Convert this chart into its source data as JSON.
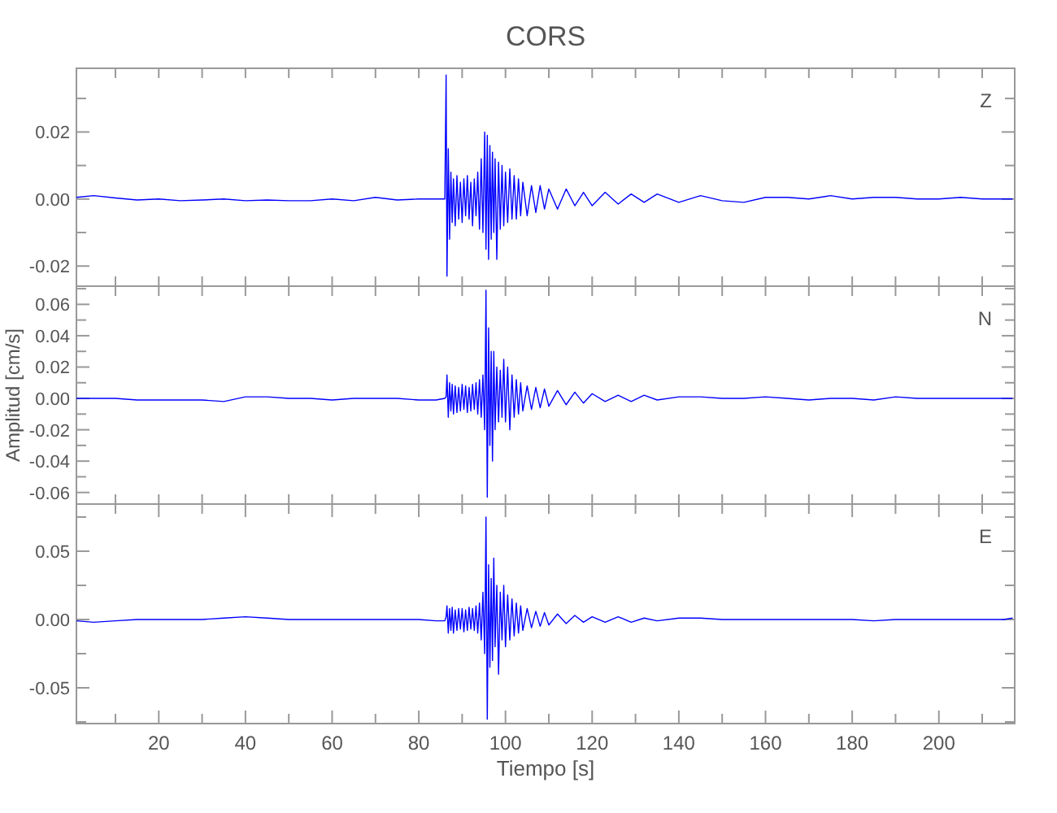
{
  "chart_data": [
    {
      "type": "line",
      "title": "CORS",
      "annotations": [
        "Z"
      ],
      "tick_labels": "y",
      "xlim": [
        1,
        217.5
      ],
      "ylim": [
        -0.026,
        0.039
      ],
      "xticks": [
        {
          "value": 10,
          "label": null
        },
        {
          "value": 20,
          "label": null
        },
        {
          "value": 30,
          "label": null
        },
        {
          "value": 40,
          "label": null
        },
        {
          "value": 50,
          "label": null
        },
        {
          "value": 60,
          "label": null
        },
        {
          "value": 70,
          "label": null
        },
        {
          "value": 80,
          "label": null
        },
        {
          "value": 90,
          "label": null
        },
        {
          "value": 100,
          "label": null
        },
        {
          "value": 110,
          "label": null
        },
        {
          "value": 120,
          "label": null
        },
        {
          "value": 130,
          "label": null
        },
        {
          "value": 140,
          "label": null
        },
        {
          "value": 150,
          "label": null
        },
        {
          "value": 160,
          "label": null
        },
        {
          "value": 170,
          "label": null
        },
        {
          "value": 180,
          "label": null
        },
        {
          "value": 190,
          "label": null
        },
        {
          "value": 200,
          "label": null
        },
        {
          "value": 210,
          "label": null
        }
      ],
      "yticks": [
        {
          "value": -0.02,
          "label": "-0.02"
        },
        {
          "value": -0.01,
          "label": null
        },
        {
          "value": 0,
          "label": "0.00"
        },
        {
          "value": 0.01,
          "label": null
        },
        {
          "value": 0.02,
          "label": "0.02"
        },
        {
          "value": 0.03,
          "label": null
        }
      ],
      "x": [
        1,
        5,
        10,
        15,
        20,
        25,
        30,
        35,
        40,
        45,
        50,
        55,
        60,
        65,
        70,
        75,
        80,
        84,
        86,
        86.3,
        86.5,
        86.8,
        87.1,
        87.4,
        87.7,
        88,
        88.4,
        88.8,
        89.2,
        89.6,
        90,
        90.4,
        90.8,
        91.2,
        91.6,
        92,
        92.4,
        92.8,
        93.2,
        93.6,
        94,
        94.4,
        94.8,
        95.2,
        95.5,
        95.8,
        96.1,
        96.4,
        96.7,
        97,
        97.3,
        97.6,
        98,
        98.4,
        98.8,
        99.2,
        99.6,
        100,
        100.5,
        101,
        101.5,
        102,
        102.5,
        103,
        103.5,
        104,
        105,
        106,
        107,
        108,
        109,
        110,
        112,
        114,
        116,
        118,
        120,
        123,
        126,
        129,
        132,
        135,
        140,
        145,
        150,
        155,
        160,
        165,
        170,
        175,
        180,
        185,
        190,
        195,
        200,
        205,
        210,
        215,
        217
      ],
      "series": [
        {
          "color": "#0000ff",
          "values": [
            0.0005,
            0.001,
            0.0003,
            -0.0003,
            0,
            -0.0005,
            -0.0003,
            0,
            -0.0005,
            -0.0003,
            -0.0005,
            -0.0005,
            0,
            -0.0005,
            0.0005,
            -0.0003,
            0,
            0,
            0,
            0.037,
            -0.023,
            0.015,
            -0.012,
            0.008,
            -0.007,
            0.006,
            -0.008,
            0.007,
            -0.006,
            0.005,
            -0.007,
            0.006,
            -0.005,
            0.007,
            -0.006,
            0.005,
            -0.008,
            0.006,
            -0.005,
            0.008,
            -0.009,
            0.012,
            -0.01,
            0.02,
            -0.015,
            0.019,
            -0.018,
            0.016,
            -0.012,
            0.014,
            -0.01,
            0.012,
            -0.018,
            0.011,
            -0.009,
            0.01,
            -0.008,
            0.008,
            -0.007,
            0.009,
            -0.006,
            0.007,
            -0.006,
            0.006,
            -0.005,
            0.005,
            -0.005,
            0.004,
            -0.004,
            0.004,
            -0.003,
            0.003,
            -0.003,
            0.003,
            -0.002,
            0.002,
            -0.002,
            0.002,
            -0.0015,
            0.0015,
            -0.001,
            0.0015,
            -0.001,
            0.001,
            -0.0005,
            -0.001,
            0.0005,
            0.0005,
            0,
            0.001,
            0,
            0.0005,
            0.0005,
            0,
            0,
            0.0005,
            0,
            0,
            0
          ]
        }
      ]
    },
    {
      "type": "line",
      "ylabel": "Amplitud [cm/s]",
      "annotations": [
        "N"
      ],
      "tick_labels": "y",
      "xlim": [
        1,
        217.5
      ],
      "ylim": [
        -0.0674,
        0.0716
      ],
      "xticks": [
        {
          "value": 10,
          "label": null
        },
        {
          "value": 20,
          "label": null
        },
        {
          "value": 30,
          "label": null
        },
        {
          "value": 40,
          "label": null
        },
        {
          "value": 50,
          "label": null
        },
        {
          "value": 60,
          "label": null
        },
        {
          "value": 70,
          "label": null
        },
        {
          "value": 80,
          "label": null
        },
        {
          "value": 90,
          "label": null
        },
        {
          "value": 100,
          "label": null
        },
        {
          "value": 110,
          "label": null
        },
        {
          "value": 120,
          "label": null
        },
        {
          "value": 130,
          "label": null
        },
        {
          "value": 140,
          "label": null
        },
        {
          "value": 150,
          "label": null
        },
        {
          "value": 160,
          "label": null
        },
        {
          "value": 170,
          "label": null
        },
        {
          "value": 180,
          "label": null
        },
        {
          "value": 190,
          "label": null
        },
        {
          "value": 200,
          "label": null
        },
        {
          "value": 210,
          "label": null
        }
      ],
      "yticks": [
        {
          "value": -0.06,
          "label": "-0.06"
        },
        {
          "value": -0.05,
          "label": null
        },
        {
          "value": -0.04,
          "label": "-0.04"
        },
        {
          "value": -0.03,
          "label": null
        },
        {
          "value": -0.02,
          "label": "-0.02"
        },
        {
          "value": -0.01,
          "label": null
        },
        {
          "value": 0,
          "label": "0.00"
        },
        {
          "value": 0.01,
          "label": null
        },
        {
          "value": 0.02,
          "label": "0.02"
        },
        {
          "value": 0.03,
          "label": null
        },
        {
          "value": 0.04,
          "label": "0.04"
        },
        {
          "value": 0.05,
          "label": null
        },
        {
          "value": 0.06,
          "label": "0.06"
        },
        {
          "value": 0.07,
          "label": null
        }
      ],
      "x": [
        1,
        5,
        10,
        15,
        20,
        25,
        30,
        35,
        40,
        45,
        50,
        55,
        60,
        65,
        70,
        75,
        80,
        84,
        86,
        86.3,
        86.5,
        86.8,
        87.1,
        87.4,
        87.7,
        88,
        88.4,
        88.8,
        89.2,
        89.6,
        90,
        90.4,
        90.8,
        91.2,
        91.6,
        92,
        92.4,
        92.8,
        93.2,
        93.6,
        94,
        94.4,
        94.8,
        95.2,
        95.5,
        95.8,
        96.1,
        96.4,
        96.7,
        97,
        97.3,
        97.6,
        98,
        98.4,
        98.8,
        99.2,
        99.6,
        100,
        100.5,
        101,
        101.5,
        102,
        102.5,
        103,
        103.5,
        104,
        105,
        106,
        107,
        108,
        109,
        110,
        112,
        114,
        116,
        118,
        120,
        123,
        126,
        129,
        132,
        135,
        140,
        145,
        150,
        155,
        160,
        165,
        170,
        175,
        180,
        185,
        190,
        195,
        200,
        205,
        210,
        215,
        217
      ],
      "series": [
        {
          "color": "#0000ff",
          "values": [
            0,
            0,
            0,
            -0.001,
            -0.001,
            -0.001,
            -0.001,
            -0.002,
            0.001,
            0.001,
            0,
            0,
            -0.001,
            0,
            0,
            0,
            -0.001,
            -0.001,
            0,
            0.001,
            0.015,
            -0.012,
            0.01,
            -0.008,
            0.009,
            -0.01,
            0.008,
            -0.009,
            0.007,
            -0.008,
            0.009,
            -0.007,
            0.008,
            -0.009,
            0.007,
            -0.008,
            0.009,
            -0.007,
            0.01,
            -0.01,
            0.012,
            -0.012,
            0.015,
            -0.02,
            0.069,
            -0.063,
            0.045,
            -0.03,
            0.03,
            -0.04,
            0.03,
            -0.02,
            0.02,
            -0.015,
            0.018,
            -0.012,
            0.025,
            -0.015,
            0.02,
            -0.02,
            0.015,
            -0.012,
            0.012,
            -0.01,
            0.01,
            -0.008,
            0.008,
            -0.007,
            0.007,
            -0.006,
            0.006,
            -0.005,
            0.005,
            -0.004,
            0.004,
            -0.003,
            0.003,
            -0.002,
            0.002,
            -0.002,
            0.002,
            -0.001,
            0.001,
            0.001,
            0,
            0,
            0.001,
            0,
            -0.001,
            0,
            0,
            -0.001,
            0.001,
            0,
            0,
            0,
            0,
            0,
            0
          ]
        }
      ]
    },
    {
      "type": "line",
      "xlabel": "Tiempo [s]",
      "annotations": [
        "E"
      ],
      "xlim": [
        1,
        217.5
      ],
      "ylim": [
        -0.0762,
        0.0845
      ],
      "xticks": [
        {
          "value": 10,
          "label": null
        },
        20,
        {
          "value": 30,
          "label": null
        },
        40,
        {
          "value": 50,
          "label": null
        },
        60,
        {
          "value": 70,
          "label": null
        },
        80,
        {
          "value": 90,
          "label": null
        },
        100,
        {
          "value": 110,
          "label": null
        },
        120,
        {
          "value": 130,
          "label": null
        },
        140,
        {
          "value": 150,
          "label": null
        },
        160,
        {
          "value": 170,
          "label": null
        },
        180,
        {
          "value": 190,
          "label": null
        },
        200,
        {
          "value": 210,
          "label": null
        }
      ],
      "yticks": [
        {
          "value": -0.075,
          "label": null
        },
        {
          "value": -0.05,
          "label": "-0.05"
        },
        {
          "value": -0.025,
          "label": null
        },
        {
          "value": 0,
          "label": "0.00"
        },
        {
          "value": 0.025,
          "label": null
        },
        {
          "value": 0.05,
          "label": "0.05"
        },
        {
          "value": 0.075,
          "label": null
        }
      ],
      "x": [
        1,
        5,
        10,
        15,
        20,
        25,
        30,
        35,
        40,
        45,
        50,
        55,
        60,
        65,
        70,
        75,
        80,
        84,
        86,
        86.3,
        86.5,
        86.8,
        87.1,
        87.4,
        87.7,
        88,
        88.4,
        88.8,
        89.2,
        89.6,
        90,
        90.4,
        90.8,
        91.2,
        91.6,
        92,
        92.4,
        92.8,
        93.2,
        93.6,
        94,
        94.4,
        94.8,
        95.2,
        95.5,
        95.8,
        96.1,
        96.4,
        96.7,
        97,
        97.3,
        97.6,
        98,
        98.4,
        98.8,
        99.2,
        99.6,
        100,
        100.5,
        101,
        101.5,
        102,
        102.5,
        103,
        103.5,
        104,
        105,
        106,
        107,
        108,
        109,
        110,
        112,
        114,
        116,
        118,
        120,
        123,
        126,
        129,
        132,
        135,
        140,
        145,
        150,
        155,
        160,
        165,
        170,
        175,
        180,
        185,
        190,
        195,
        200,
        205,
        210,
        215,
        217
      ],
      "series": [
        {
          "color": "#0000ff",
          "values": [
            -0.001,
            -0.002,
            -0.001,
            0,
            0,
            0,
            0,
            0.001,
            0.002,
            0.001,
            0,
            0,
            0,
            0,
            0,
            0,
            0,
            -0.001,
            -0.001,
            0.002,
            0.01,
            -0.01,
            0.008,
            -0.008,
            0.009,
            -0.01,
            0.007,
            -0.008,
            0.008,
            -0.007,
            0.008,
            -0.009,
            0.007,
            -0.008,
            0.009,
            -0.007,
            0.008,
            -0.008,
            0.01,
            -0.01,
            0.012,
            -0.015,
            0.02,
            -0.025,
            0.075,
            -0.073,
            0.04,
            -0.035,
            0.03,
            -0.03,
            0.045,
            -0.02,
            0.025,
            -0.04,
            0.02,
            -0.015,
            0.025,
            -0.02,
            0.018,
            -0.015,
            0.015,
            -0.012,
            0.012,
            -0.01,
            0.01,
            -0.008,
            0.008,
            -0.006,
            0.006,
            -0.005,
            0.005,
            -0.004,
            0.004,
            -0.003,
            0.003,
            -0.002,
            0.002,
            -0.002,
            0.002,
            -0.002,
            0.001,
            -0.001,
            0.001,
            0.001,
            0,
            0,
            0,
            0,
            0,
            0,
            0,
            -0.001,
            0,
            0,
            0,
            0,
            0,
            0,
            0.001
          ]
        }
      ]
    }
  ]
}
